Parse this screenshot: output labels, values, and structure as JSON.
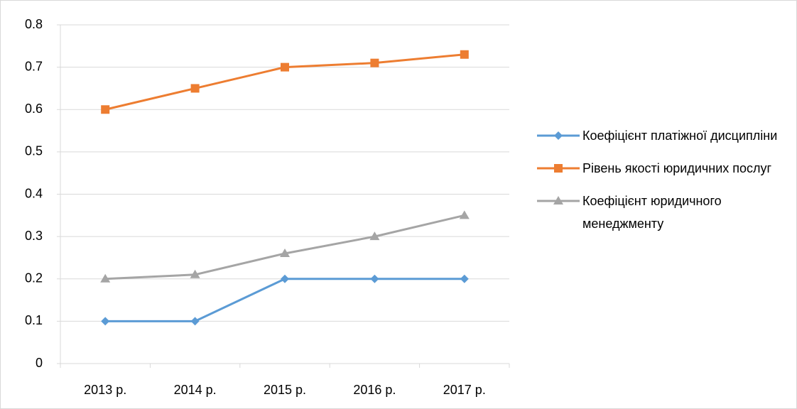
{
  "chart_data": {
    "type": "line",
    "categories": [
      "2013 р.",
      "2014 р.",
      "2015 р.",
      "2016 р.",
      "2017 р."
    ],
    "series": [
      {
        "name": "Коефіцієнт платіжної дисципліни",
        "color": "#5b9bd5",
        "marker": "diamond",
        "values": [
          0.1,
          0.1,
          0.2,
          0.2,
          0.2
        ]
      },
      {
        "name": "Рівень якості юридичних послуг",
        "color": "#ed7d31",
        "marker": "square",
        "values": [
          0.6,
          0.65,
          0.7,
          0.71,
          0.73
        ]
      },
      {
        "name": "Коефіцієнт юридичного менеджменту",
        "color": "#a5a5a5",
        "marker": "triangle",
        "values": [
          0.2,
          0.21,
          0.26,
          0.3,
          0.35
        ]
      }
    ],
    "ylim": [
      0,
      0.8
    ],
    "yticks": [
      0,
      0.1,
      0.2,
      0.3,
      0.4,
      0.5,
      0.6,
      0.7,
      0.8
    ],
    "grid": true,
    "legend": "right"
  }
}
